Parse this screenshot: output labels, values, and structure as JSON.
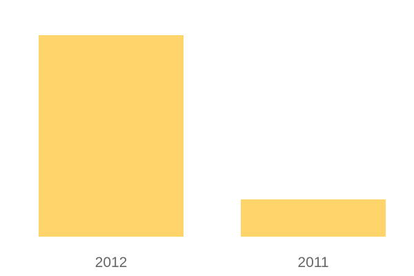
{
  "chart_data": {
    "type": "bar",
    "categories": [
      "2012",
      "2011"
    ],
    "values": [
      100,
      18.5
    ],
    "title": "",
    "xlabel": "",
    "ylabel": "",
    "ylim": [
      0,
      100
    ],
    "grid": false,
    "legend": "none",
    "bar_color": "#FED46B",
    "label_color": "#666666"
  }
}
